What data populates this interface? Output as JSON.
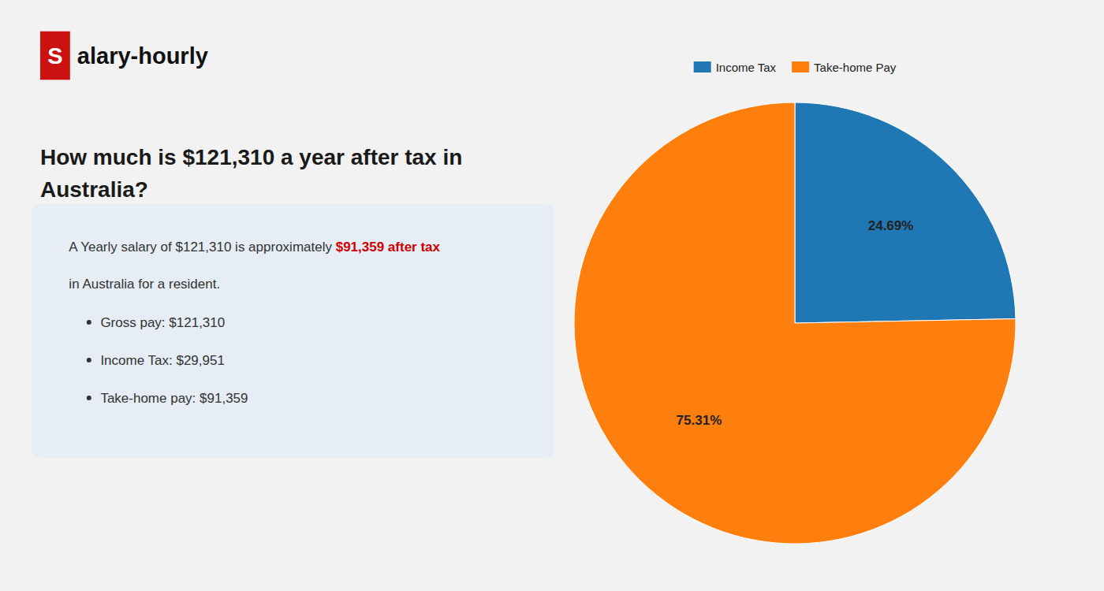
{
  "chart_data": {
    "type": "pie",
    "title": "How much is $121,310 a year after tax in\nAustralia?",
    "categories": [
      "Income Tax",
      "Take-home Pay"
    ],
    "values": [
      24.69,
      75.31
    ],
    "value_labels": [
      "24.69%",
      "75.31%"
    ],
    "data_labels": true,
    "legend": "top",
    "annotations": [
      "S",
      "alary-hourly",
      "A Yearly salary of $121,310 is approximately ",
      "$91,359 after tax",
      "in Australia for a resident.",
      "Gross pay: $121,310",
      "Income Tax: $29,951",
      "Take-home pay: $91,359"
    ]
  }
}
